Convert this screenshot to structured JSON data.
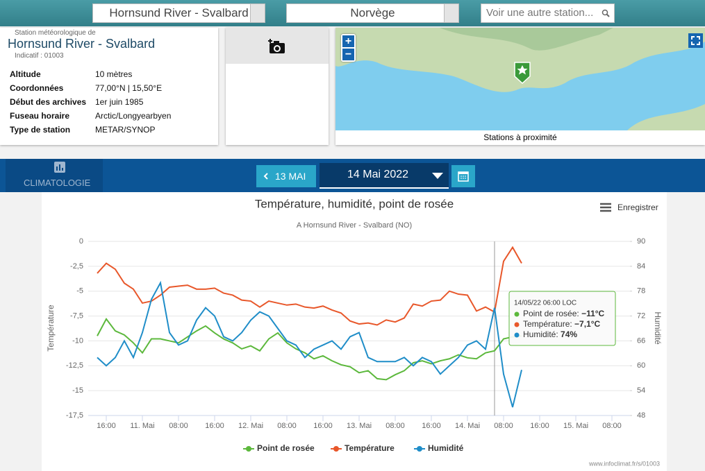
{
  "header": {
    "station_select": "Hornsund River - Svalbard",
    "country_select": "Norvège",
    "search_placeholder": "Voir une autre station..."
  },
  "station": {
    "subtitle": "Station météorologique de",
    "name": "Hornsund River - Svalbard",
    "code": "Indicatif : 01003",
    "rows": [
      [
        "Altitude",
        "10 mètres"
      ],
      [
        "Coordonnées",
        "77,00°N | 15,50°E"
      ],
      [
        "Début des archives",
        "1er juin 1985"
      ],
      [
        "Fuseau horaire",
        "Arctic/Longyearbyen"
      ],
      [
        "Type de station",
        "METAR/SYNOP"
      ]
    ]
  },
  "map": {
    "zoom_in": "+",
    "zoom_out": "−",
    "footer": "Stations à proximité"
  },
  "nav": {
    "section": "CLIMATOLOGIE",
    "prev_button": "13 MAI",
    "date": "14 Mai 2022"
  },
  "chart_data": {
    "type": "line",
    "title": "Température, humidité, point de rosée",
    "subtitle": "A Hornsund River - Svalbard (NO)",
    "y_label": "Température",
    "y2_label": "Humidité",
    "export": "Enregistrer",
    "credits": "www.infoclimat.fr/s/01003",
    "x": [
      -10,
      -8,
      -6,
      -4,
      -2,
      0,
      2,
      4,
      6,
      8,
      10,
      12,
      14,
      16,
      18,
      20,
      22,
      24,
      26,
      28,
      30,
      32,
      34,
      36,
      38,
      40,
      42,
      44,
      46,
      48,
      50,
      52,
      54,
      56,
      58,
      60,
      62,
      64,
      66,
      68,
      70,
      72,
      74,
      76,
      78,
      80,
      82,
      84
    ],
    "xlim": [
      -12,
      108
    ],
    "xticks": [
      {
        "value": -8,
        "label": "16:00"
      },
      {
        "value": 0,
        "label": "11. Mai"
      },
      {
        "value": 8,
        "label": "08:00"
      },
      {
        "value": 16,
        "label": "16:00"
      },
      {
        "value": 24,
        "label": "12. Mai"
      },
      {
        "value": 32,
        "label": "08:00"
      },
      {
        "value": 40,
        "label": "16:00"
      },
      {
        "value": 48,
        "label": "13. Mai"
      },
      {
        "value": 56,
        "label": "08:00"
      },
      {
        "value": 64,
        "label": "16:00"
      },
      {
        "value": 72,
        "label": "14. Mai"
      },
      {
        "value": 80,
        "label": "08:00"
      },
      {
        "value": 88,
        "label": "16:00"
      },
      {
        "value": 96,
        "label": "15. Mai"
      },
      {
        "value": 104,
        "label": "08:00"
      }
    ],
    "ylim": [
      -17.5,
      0
    ],
    "yticks": [
      0,
      {
        "value": -2.5,
        "label": "-2,5"
      },
      -5,
      {
        "value": -7.5,
        "label": "-7,5"
      },
      -10,
      {
        "value": -12.5,
        "label": "-12,5"
      },
      -15,
      {
        "value": -17.5,
        "label": "-17,5"
      }
    ],
    "y2lim": [
      48,
      90
    ],
    "y2ticks": [
      90,
      84,
      78,
      72,
      66,
      60,
      54,
      48
    ],
    "grid": true,
    "series": [
      {
        "name": "Point de rosée",
        "color": "#5cb83c",
        "values": [
          -9.5,
          -7.8,
          -9.0,
          -9.4,
          -10.2,
          -11.2,
          -9.8,
          -9.8,
          -10.0,
          -10.2,
          -9.6,
          -9.0,
          -8.5,
          -9.2,
          -9.8,
          -10.2,
          -10.8,
          -10.5,
          -11.0,
          -9.8,
          -9.2,
          -10.2,
          -10.8,
          -11.2,
          -11.8,
          -11.5,
          -12.0,
          -12.4,
          -12.6,
          -13.2,
          -13.0,
          -13.8,
          -13.9,
          -13.4,
          -13.0,
          -12.2,
          -12.0,
          -12.3,
          -12.0,
          -11.8,
          -11.4,
          -11.7,
          -11.8,
          -11.2,
          -11,
          -9.8,
          -9.6,
          -9.5
        ]
      },
      {
        "name": "Température",
        "color": "#e8572a",
        "values": [
          -3.2,
          -2.2,
          -2.8,
          -4.2,
          -4.8,
          -6.2,
          -6.0,
          -5.4,
          -4.6,
          -4.5,
          -4.4,
          -4.8,
          -4.8,
          -4.7,
          -5.2,
          -5.4,
          -5.9,
          -6.0,
          -6.6,
          -6.0,
          -6.2,
          -6.4,
          -6.3,
          -6.6,
          -6.7,
          -6.5,
          -6.9,
          -7.2,
          -8.0,
          -8.3,
          -8.2,
          -8.4,
          -7.9,
          -8.1,
          -7.7,
          -6.3,
          -6.5,
          -6.0,
          -5.9,
          -5.0,
          -5.3,
          -5.4,
          -7.0,
          -6.6,
          -7.1,
          -2.0,
          -0.6,
          -2.2
        ]
      },
      {
        "name": "Humidité",
        "color": "#1f8dc8",
        "axis": "y2",
        "values": [
          62,
          60,
          62,
          66,
          62,
          68,
          76,
          80,
          68,
          65,
          66,
          71,
          74,
          72,
          67,
          66,
          68,
          71,
          73,
          72,
          69,
          66,
          65,
          62,
          64,
          65,
          66,
          64,
          67,
          68,
          62,
          61,
          61,
          61,
          62,
          60,
          62,
          61,
          58,
          60,
          62,
          65,
          66,
          64,
          74,
          58,
          50,
          59
        ]
      }
    ],
    "tooltip": {
      "title": "14/05/22 06:00 LOC",
      "items": [
        {
          "label": "Point de rosée: ",
          "value": "−11°C"
        },
        {
          "label": "Température: ",
          "value": "−7,1°C"
        },
        {
          "label": "Humidité: ",
          "value": "74%"
        }
      ]
    }
  }
}
